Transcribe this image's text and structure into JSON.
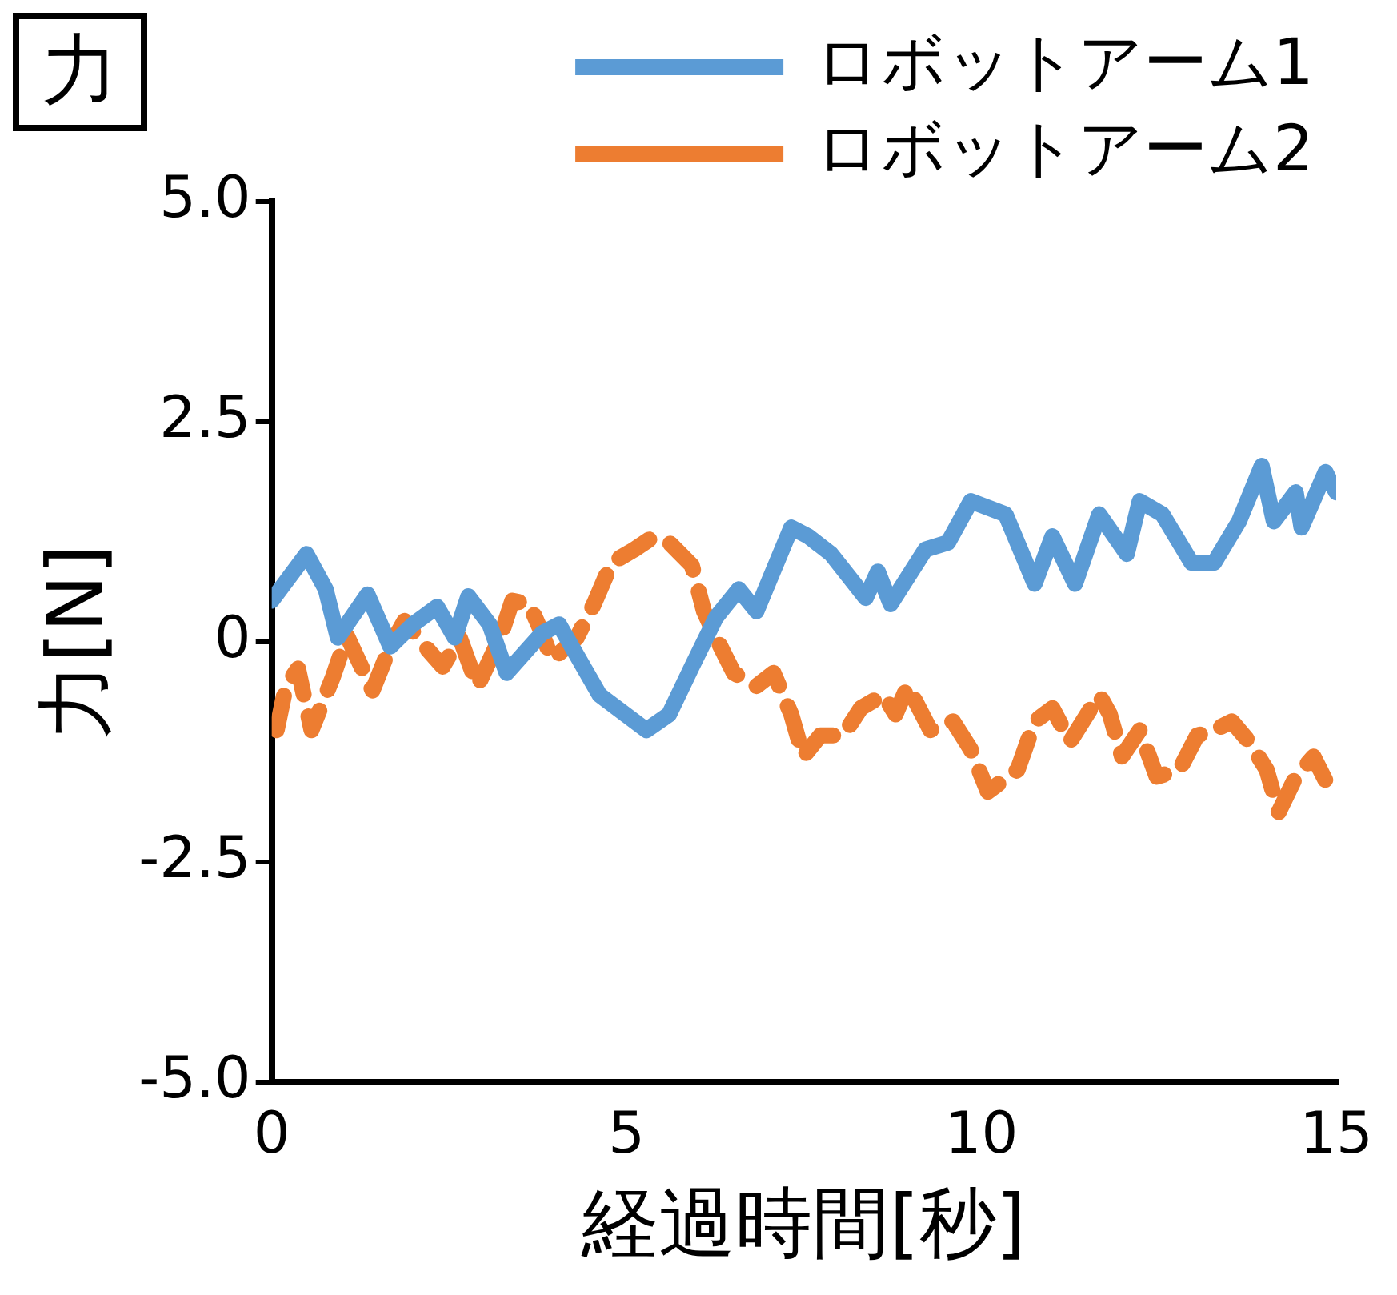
{
  "chart_data": {
    "type": "line",
    "title": "力",
    "xlabel": "経過時間[秒]",
    "ylabel": "力[N]",
    "xlim": [
      0,
      15
    ],
    "xticks": [
      0,
      5,
      10,
      15
    ],
    "ylim": [
      -5,
      5
    ],
    "yticks": [
      {
        "value": -5,
        "label": "-5.0"
      },
      {
        "value": -2.5,
        "label": "-2.5"
      },
      0,
      {
        "value": 2.5,
        "label": "2.5"
      },
      {
        "value": 5,
        "label": "5.0"
      }
    ],
    "grid": false,
    "legend": "top right",
    "marker": "none",
    "series": [
      {
        "name": "ロボットアーム1",
        "color": "#5b9bd5",
        "line_style": "solid",
        "x": [
          0,
          0.49,
          0.76,
          0.93,
          1.35,
          1.67,
          1.99,
          2.33,
          2.58,
          2.77,
          3.07,
          3.31,
          3.81,
          4.05,
          4.62,
          5.28,
          5.6,
          5.92,
          6.26,
          6.58,
          6.83,
          7.32,
          7.56,
          7.88,
          8.37,
          8.54,
          8.72,
          9.21,
          9.53,
          9.85,
          10.34,
          10.75,
          11.0,
          11.32,
          11.66,
          12.05,
          12.23,
          12.55,
          12.96,
          13.28,
          13.63,
          13.95,
          14.12,
          14.43,
          14.51,
          14.85,
          15.0
        ],
        "values": [
          0.47,
          1.0,
          0.6,
          0.05,
          0.54,
          -0.05,
          0.2,
          0.4,
          0.05,
          0.52,
          0.2,
          -0.35,
          0.1,
          0.2,
          -0.6,
          -1.0,
          -0.82,
          -0.28,
          0.28,
          0.6,
          0.35,
          1.3,
          1.2,
          1.0,
          0.5,
          0.8,
          0.43,
          1.05,
          1.13,
          1.6,
          1.45,
          0.66,
          1.2,
          0.66,
          1.45,
          1.0,
          1.6,
          1.45,
          0.9,
          0.9,
          1.37,
          2.0,
          1.37,
          1.7,
          1.3,
          1.93,
          1.7
        ]
      },
      {
        "name": "ロボットアーム2",
        "color": "#ed7d31",
        "line_style": "dashed",
        "x": [
          0.07,
          0.2,
          0.37,
          0.56,
          0.86,
          1.06,
          1.42,
          1.67,
          1.87,
          2.16,
          2.41,
          2.65,
          2.9,
          3.22,
          3.39,
          3.63,
          3.81,
          3.95,
          4.3,
          4.54,
          4.79,
          5.11,
          5.35,
          5.6,
          5.92,
          6.09,
          6.26,
          6.51,
          6.83,
          7.07,
          7.32,
          7.49,
          7.73,
          8.05,
          8.3,
          8.62,
          8.79,
          8.96,
          9.28,
          9.6,
          9.85,
          10.09,
          10.51,
          10.75,
          11.0,
          11.25,
          11.66,
          11.81,
          11.98,
          12.23,
          12.47,
          12.79,
          13.04,
          13.28,
          13.53,
          13.77,
          14.02,
          14.19,
          14.43,
          14.68,
          14.93
        ],
        "values": [
          -1.0,
          -0.5,
          -0.3,
          -1.0,
          -0.4,
          0.07,
          -0.55,
          -0.05,
          0.24,
          -0.05,
          -0.28,
          0.05,
          -0.5,
          0.05,
          0.47,
          0.43,
          0.1,
          -0.2,
          0.05,
          0.43,
          0.9,
          1.05,
          1.18,
          1.13,
          0.87,
          0.35,
          0.05,
          -0.35,
          -0.5,
          -0.35,
          -0.82,
          -1.3,
          -1.06,
          -1.06,
          -0.75,
          -0.6,
          -0.82,
          -0.5,
          -1.0,
          -0.9,
          -1.22,
          -1.7,
          -1.45,
          -0.9,
          -0.75,
          -1.13,
          -0.6,
          -0.82,
          -1.3,
          -1.0,
          -1.53,
          -1.45,
          -1.06,
          -1.0,
          -0.9,
          -1.13,
          -1.45,
          -1.93,
          -1.53,
          -1.3,
          -1.7
        ]
      }
    ]
  }
}
